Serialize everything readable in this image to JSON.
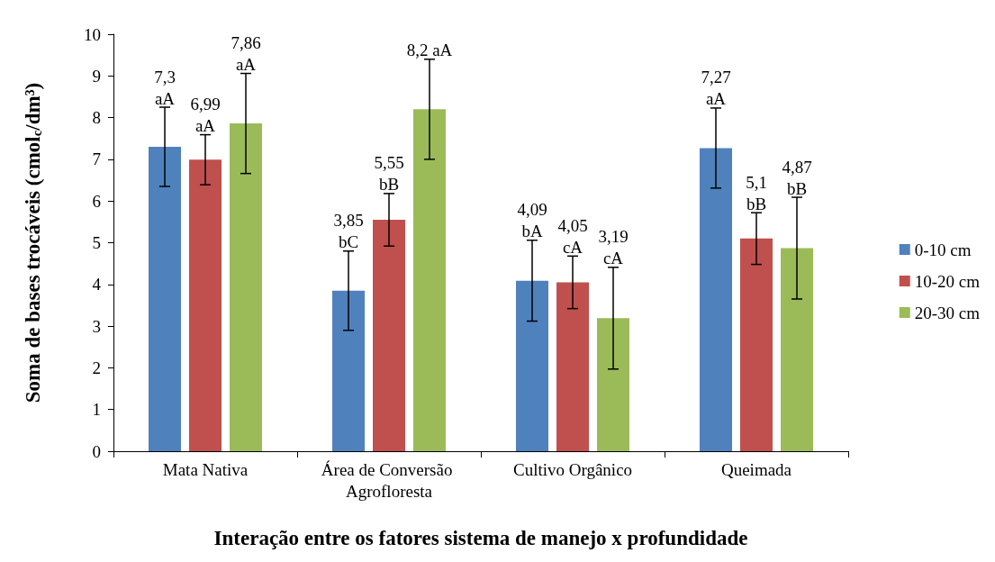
{
  "chart_data": {
    "type": "bar",
    "xlabel": "Interação entre os fatores sistema de manejo x profundidade",
    "ylabel": "Soma de bases trocáveis (cmol$_{c}$/dm³)",
    "categories": [
      "Mata Nativa",
      "Área de Conversão Agrofloresta",
      "Cultivo Orgânico",
      "Queimada"
    ],
    "series": [
      {
        "name": "0-10 cm",
        "color": "#4f81bd",
        "values": [
          7.3,
          3.85,
          4.09,
          7.27
        ],
        "errors": [
          0.95,
          0.95,
          0.97,
          0.96
        ],
        "value_labels": [
          "7,3\naA",
          "3,85\nbC",
          "4,09\nbA",
          "7,27\naA"
        ]
      },
      {
        "name": "10-20 cm",
        "color": "#c0504d",
        "values": [
          6.99,
          5.55,
          4.05,
          5.1
        ],
        "errors": [
          0.6,
          0.63,
          0.63,
          0.62
        ],
        "value_labels": [
          "6,99\naA",
          "5,55\nbB",
          "4,05\ncA",
          "5,1\nbB"
        ]
      },
      {
        "name": "20-30 cm",
        "color": "#9bbb59",
        "values": [
          7.86,
          8.2,
          3.19,
          4.87
        ],
        "errors": [
          1.2,
          1.2,
          1.22,
          1.22
        ],
        "value_labels": [
          "7,86\naA",
          "8,2 aA",
          "3,19\ncA",
          "4,87\nbB"
        ]
      }
    ],
    "ylim": [
      0,
      10
    ],
    "yticks": [
      0,
      1,
      2,
      3,
      4,
      5,
      6,
      7,
      8,
      9,
      10
    ],
    "grid": false,
    "legend": "right"
  }
}
